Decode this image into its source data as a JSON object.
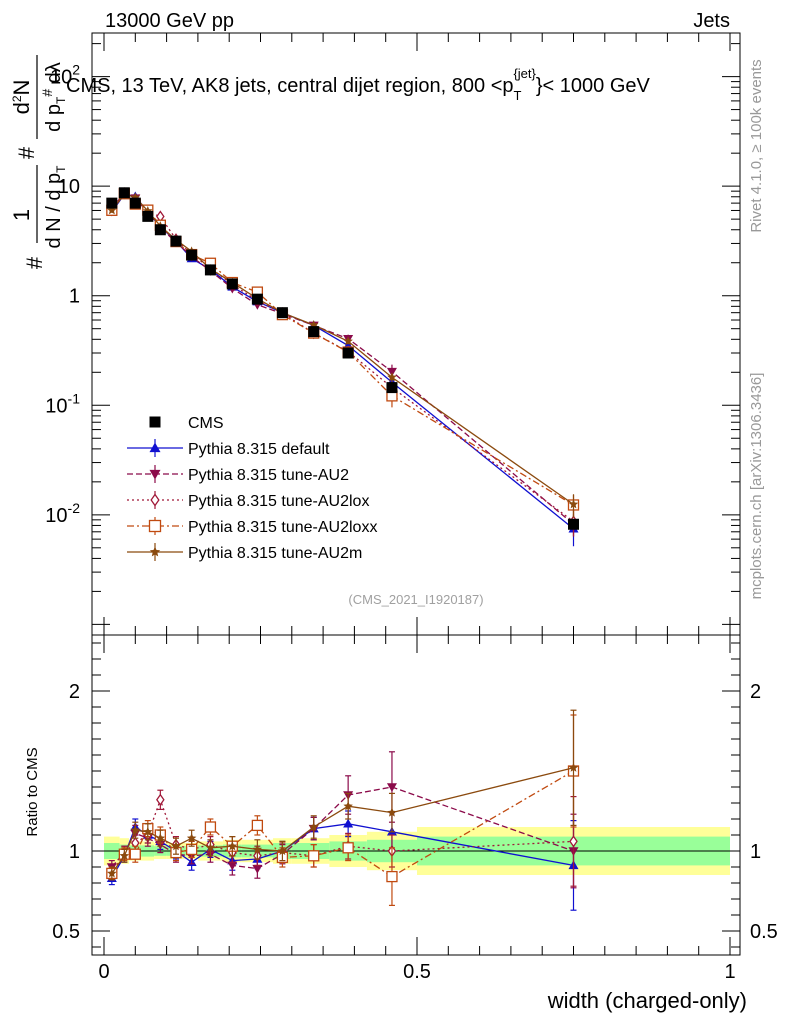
{
  "header": {
    "left": "13000 GeV pp",
    "right": "Jets"
  },
  "side_labels": {
    "rivet": "Rivet 4.1.0, ≥ 100k events",
    "mcplots": "mcplots.cern.ch [arXiv:1306.3436]"
  },
  "chart_data": {
    "type": "line",
    "title": "CMS, 13 TeV, AK8 jets, central dijet region, 800 <p_T^{jet}< 1000 GeV",
    "analysis_tag": "(CMS_2021_I1920187)",
    "xlabel": "width (charged-only)",
    "ylabel": "1/dN/dp_T^# # d²N/dp_T^# dλ",
    "ratio_ylabel": "Ratio to CMS",
    "xlim": [
      0,
      1
    ],
    "ylim_log": [
      0.0008,
      250
    ],
    "ratio_ylim": [
      0.35,
      2.35
    ],
    "x_ticks": [
      {
        "v": 0,
        "label": "0"
      },
      {
        "v": 0.5,
        "label": "0.5"
      },
      {
        "v": 1,
        "label": "1"
      }
    ],
    "y_ticks": [
      {
        "v": 0.01,
        "label": "10^-2"
      },
      {
        "v": 0.1,
        "label": "10^-1"
      },
      {
        "v": 1,
        "label": "1"
      },
      {
        "v": 10,
        "label": "10"
      },
      {
        "v": 100,
        "label": "10^2"
      }
    ],
    "ratio_ticks": [
      {
        "v": 0.5,
        "label": "0.5"
      },
      {
        "v": 1,
        "label": "1"
      },
      {
        "v": 2,
        "label": "2"
      }
    ],
    "legend": {
      "position": "middle-left"
    },
    "x": [
      0.0125,
      0.0325,
      0.05,
      0.07,
      0.09,
      0.115,
      0.14,
      0.17,
      0.205,
      0.245,
      0.285,
      0.335,
      0.39,
      0.46,
      0.75
    ],
    "bin_edges": [
      0,
      0.025,
      0.04,
      0.06,
      0.08,
      0.1,
      0.13,
      0.15,
      0.19,
      0.22,
      0.27,
      0.3,
      0.36,
      0.42,
      0.5,
      1.0
    ],
    "band_yellow": [
      0.09,
      0.08,
      0.06,
      0.06,
      0.05,
      0.05,
      0.05,
      0.06,
      0.07,
      0.07,
      0.08,
      0.08,
      0.1,
      0.12,
      0.15
    ],
    "band_green": [
      0.05,
      0.04,
      0.035,
      0.035,
      0.03,
      0.03,
      0.03,
      0.035,
      0.04,
      0.04,
      0.05,
      0.05,
      0.06,
      0.07,
      0.09
    ],
    "data": {
      "name": "CMS",
      "color": "#000000",
      "values": [
        7.0,
        8.7,
        7.0,
        5.3,
        4.0,
        3.15,
        2.35,
        1.72,
        1.28,
        0.93,
        0.7,
        0.47,
        0.3,
        0.145,
        0.0082
      ]
    },
    "series": [
      {
        "name": "Pythia 8.315 default",
        "color": "#1010d0",
        "marker": "triangle-up",
        "dash": "",
        "ratio": [
          0.83,
          0.97,
          1.15,
          1.1,
          1.06,
          1.0,
          0.93,
          1.01,
          0.94,
          0.95,
          1.0,
          1.14,
          1.17,
          1.12,
          0.91
        ],
        "ratio_err": [
          0.04,
          0.04,
          0.05,
          0.05,
          0.05,
          0.05,
          0.05,
          0.05,
          0.06,
          0.06,
          0.06,
          0.07,
          0.08,
          0.12,
          0.28
        ]
      },
      {
        "name": "Pythia 8.315 tune-AU2",
        "color": "#8b0a4a",
        "marker": "triangle-down",
        "dash": "6,3",
        "ratio": [
          0.9,
          0.99,
          1.11,
          1.08,
          1.04,
          0.98,
          0.97,
          0.98,
          0.91,
          0.89,
          0.98,
          1.14,
          1.35,
          1.4,
          1.0
        ],
        "ratio_err": [
          0.04,
          0.04,
          0.05,
          0.05,
          0.05,
          0.05,
          0.05,
          0.05,
          0.06,
          0.06,
          0.06,
          0.07,
          0.12,
          0.22,
          0.23
        ]
      },
      {
        "name": "Pythia 8.315 tune-AU2lox",
        "color": "#a01838",
        "marker": "diamond-open",
        "dash": "2,3",
        "ratio": [
          0.86,
          0.99,
          1.05,
          1.1,
          1.32,
          1.04,
          1.01,
          1.04,
          0.99,
          0.97,
          0.99,
          0.97,
          1.03,
          1.0,
          1.06
        ],
        "ratio_err": [
          0.04,
          0.04,
          0.05,
          0.05,
          0.06,
          0.05,
          0.05,
          0.05,
          0.06,
          0.06,
          0.06,
          0.07,
          0.08,
          0.1,
          0.28
        ]
      },
      {
        "name": "Pythia 8.315 tune-AU2loxx",
        "color": "#c04a10",
        "marker": "square-open",
        "dash": "7,3,2,3",
        "ratio": [
          0.86,
          0.98,
          0.98,
          1.14,
          1.1,
          0.99,
          1.01,
          1.15,
          1.03,
          1.16,
          0.96,
          0.97,
          1.02,
          0.84,
          1.5
        ],
        "ratio_err": [
          0.04,
          0.04,
          0.05,
          0.05,
          0.05,
          0.05,
          0.05,
          0.05,
          0.06,
          0.06,
          0.06,
          0.07,
          0.08,
          0.18,
          0.35
        ]
      },
      {
        "name": "Pythia 8.315 tune-AU2m",
        "color": "#8b4a0e",
        "marker": "star",
        "dash": "",
        "ratio": [
          0.86,
          0.97,
          1.13,
          1.12,
          1.08,
          1.03,
          1.08,
          1.02,
          1.03,
          1.01,
          1.0,
          1.15,
          1.28,
          1.24,
          1.52
        ],
        "ratio_err": [
          0.04,
          0.04,
          0.05,
          0.05,
          0.05,
          0.05,
          0.05,
          0.05,
          0.06,
          0.06,
          0.06,
          0.07,
          0.08,
          0.12,
          0.36
        ]
      }
    ]
  }
}
